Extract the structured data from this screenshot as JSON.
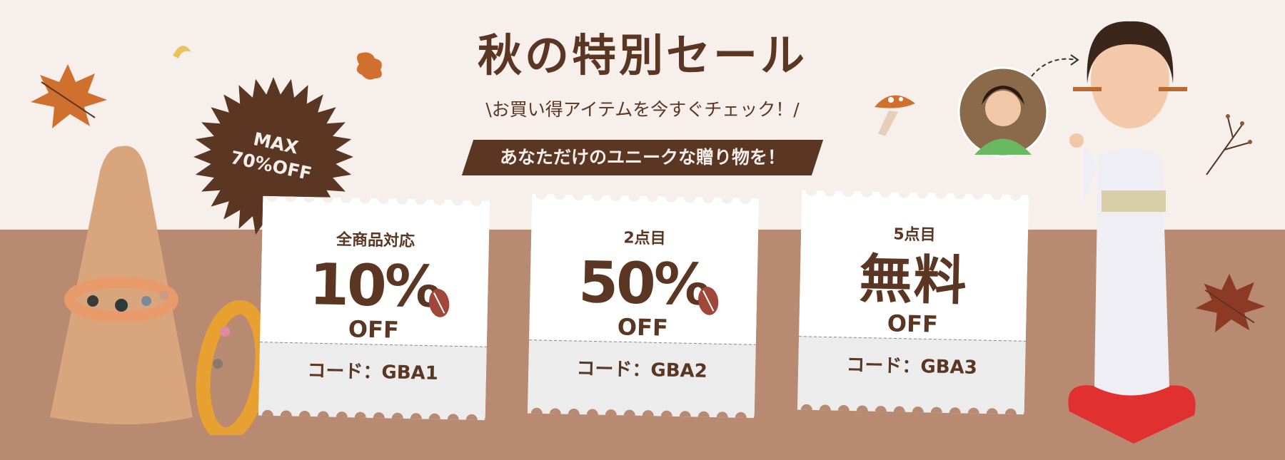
{
  "banner": {
    "title": "秋の特別セール",
    "subtitle": "\\お買い得アイテムを今すぐチェック！/",
    "ribbon": "あなただけのユニークな贈り物を！",
    "burst": {
      "line1": "MAX",
      "line2": "70%OFF"
    },
    "colors": {
      "brown": "#5a3623",
      "cream": "#f6efeb",
      "tan": "#b98a72",
      "bean": "#a0473a"
    }
  },
  "coupons": [
    {
      "label": "全商品対応",
      "value": "10%",
      "off": "OFF",
      "code": "コード：GBA1"
    },
    {
      "label": "2点目",
      "value": "50%",
      "off": "OFF",
      "code": "コード：GBA2"
    },
    {
      "label": "5点目",
      "value": "無料",
      "off": "OFF",
      "code": "コード：GBA3"
    }
  ]
}
